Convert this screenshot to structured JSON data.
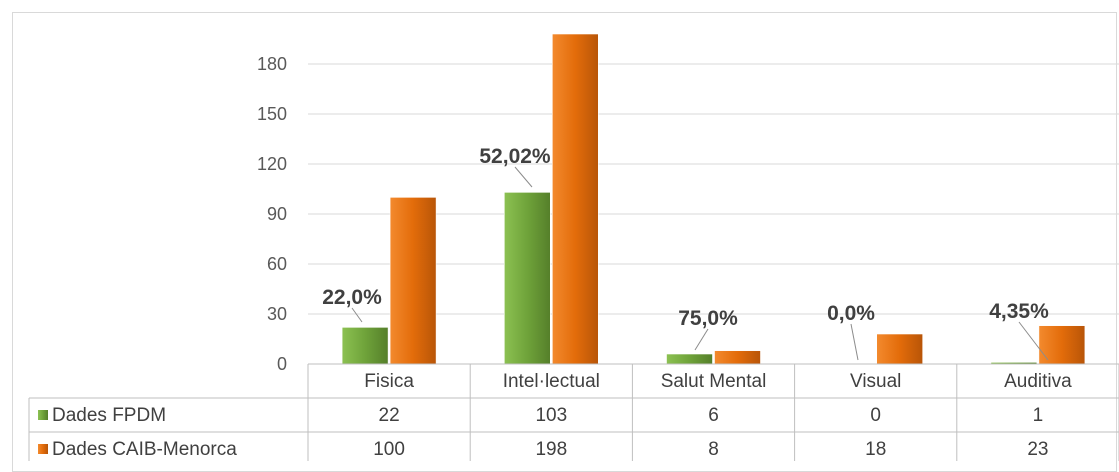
{
  "chart_data": {
    "type": "bar",
    "categories": [
      "Fisica",
      "Intel·lectual",
      "Salut Mental",
      "Visual",
      "Auditiva"
    ],
    "series": [
      {
        "name": "Dades FPDM",
        "values": [
          22,
          103,
          6,
          0,
          1
        ],
        "color": "#70a33c"
      },
      {
        "name": "Dades CAIB-Menorca",
        "values": [
          100,
          198,
          8,
          18,
          23
        ],
        "color": "#e36c0a"
      }
    ],
    "percent_labels": [
      "22,0%",
      "52,02%",
      "75,0%",
      "0,0%",
      "4,35%"
    ],
    "y_ticks": [
      0,
      30,
      60,
      90,
      120,
      150,
      180
    ],
    "ylim": [
      0,
      198
    ],
    "grid": true,
    "legend": "data-table"
  }
}
